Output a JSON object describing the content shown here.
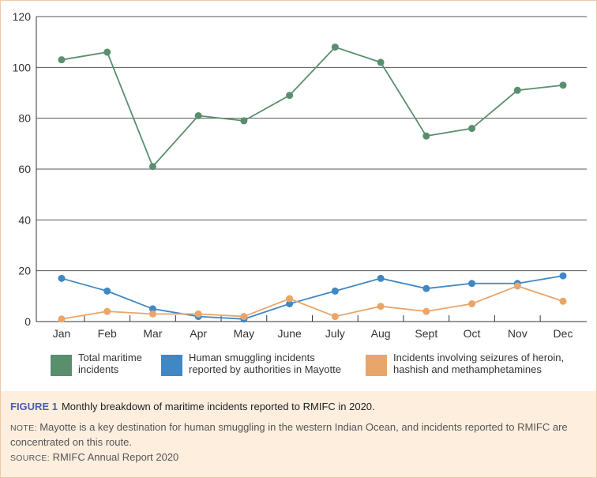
{
  "chart_data": {
    "type": "line",
    "categories": [
      "Jan",
      "Feb",
      "Mar",
      "Apr",
      "May",
      "June",
      "July",
      "Aug",
      "Sept",
      "Oct",
      "Nov",
      "Dec"
    ],
    "ylim": [
      0,
      120
    ],
    "yticks": [
      "0",
      "20",
      "40",
      "60",
      "80",
      "100",
      "120"
    ],
    "grid": true,
    "legend_position": "bottom",
    "series": [
      {
        "name": "Total maritime incidents",
        "color": "#5a8f6e",
        "values": [
          103,
          106,
          61,
          81,
          79,
          89,
          108,
          102,
          73,
          76,
          91,
          93
        ]
      },
      {
        "name": "Human smuggling incidents reported by authorities in Mayotte",
        "color": "#3f88c5",
        "values": [
          17,
          12,
          5,
          2,
          1,
          7,
          12,
          17,
          13,
          15,
          15,
          18
        ]
      },
      {
        "name": "Incidents involving seizures of heroin, hashish and methamphetamines",
        "color": "#e8a66a",
        "values": [
          1,
          4,
          3,
          3,
          2,
          9,
          2,
          6,
          4,
          7,
          14,
          8
        ]
      }
    ]
  },
  "legend": {
    "item1_line1": "Total maritime",
    "item1_line2": "incidents",
    "item2_line1": "Human smuggling incidents",
    "item2_line2": "reported by authorities in Mayotte",
    "item3_line1": "Incidents involving seizures of heroin,",
    "item3_line2": "hashish and methamphetamines"
  },
  "caption": {
    "label": "FIGURE 1",
    "title": "Monthly breakdown of maritime incidents reported to RMIFC in 2020.",
    "note_label": "NOTE:",
    "note_text": "Mayotte is a key destination for human smuggling in the western Indian Ocean, and incidents reported to RMIFC are concentrated on this route.",
    "source_label": "SOURCE:",
    "source_text": "RMIFC Annual Report 2020"
  }
}
